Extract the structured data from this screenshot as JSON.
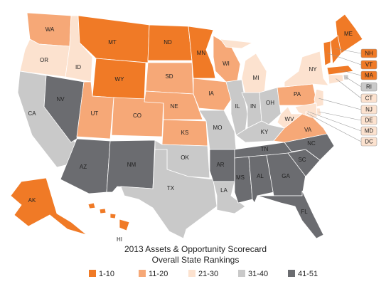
{
  "title": "2013 Assets & Opportunity Scorecard",
  "subtitle": "Overall State Rankings",
  "legend": [
    {
      "label": "1-10",
      "color": "#f07a26"
    },
    {
      "label": "11-20",
      "color": "#f6a877"
    },
    {
      "label": "21-30",
      "color": "#fce2cf"
    },
    {
      "label": "31-40",
      "color": "#c9c9c9"
    },
    {
      "label": "41-51",
      "color": "#6b6c70"
    }
  ],
  "states": [
    {
      "abbr": "WA",
      "group": "11-20"
    },
    {
      "abbr": "OR",
      "group": "21-30"
    },
    {
      "abbr": "CA",
      "group": "31-40"
    },
    {
      "abbr": "NV",
      "group": "41-51"
    },
    {
      "abbr": "ID",
      "group": "21-30"
    },
    {
      "abbr": "MT",
      "group": "1-10"
    },
    {
      "abbr": "WY",
      "group": "1-10"
    },
    {
      "abbr": "UT",
      "group": "11-20"
    },
    {
      "abbr": "AZ",
      "group": "41-51"
    },
    {
      "abbr": "CO",
      "group": "11-20"
    },
    {
      "abbr": "NM",
      "group": "41-51"
    },
    {
      "abbr": "ND",
      "group": "1-10"
    },
    {
      "abbr": "SD",
      "group": "11-20"
    },
    {
      "abbr": "NE",
      "group": "11-20"
    },
    {
      "abbr": "KS",
      "group": "11-20"
    },
    {
      "abbr": "OK",
      "group": "31-40"
    },
    {
      "abbr": "TX",
      "group": "31-40"
    },
    {
      "abbr": "MN",
      "group": "1-10"
    },
    {
      "abbr": "IA",
      "group": "11-20"
    },
    {
      "abbr": "MO",
      "group": "31-40"
    },
    {
      "abbr": "AR",
      "group": "41-51"
    },
    {
      "abbr": "LA",
      "group": "31-40"
    },
    {
      "abbr": "WI",
      "group": "11-20"
    },
    {
      "abbr": "IL",
      "group": "31-40"
    },
    {
      "abbr": "MI",
      "group": "21-30"
    },
    {
      "abbr": "IN",
      "group": "31-40"
    },
    {
      "abbr": "OH",
      "group": "31-40"
    },
    {
      "abbr": "KY",
      "group": "31-40"
    },
    {
      "abbr": "TN",
      "group": "41-51"
    },
    {
      "abbr": "MS",
      "group": "41-51"
    },
    {
      "abbr": "AL",
      "group": "41-51"
    },
    {
      "abbr": "GA",
      "group": "41-51"
    },
    {
      "abbr": "FL",
      "group": "41-51"
    },
    {
      "abbr": "SC",
      "group": "41-51"
    },
    {
      "abbr": "NC",
      "group": "41-51"
    },
    {
      "abbr": "VA",
      "group": "11-20"
    },
    {
      "abbr": "WV",
      "group": "21-30"
    },
    {
      "abbr": "PA",
      "group": "11-20"
    },
    {
      "abbr": "NY",
      "group": "21-30"
    },
    {
      "abbr": "ME",
      "group": "1-10"
    },
    {
      "abbr": "VT",
      "group": "1-10"
    },
    {
      "abbr": "NH",
      "group": "1-10"
    },
    {
      "abbr": "MA",
      "group": "1-10"
    },
    {
      "abbr": "RI",
      "group": "31-40"
    },
    {
      "abbr": "CT",
      "group": "21-30"
    },
    {
      "abbr": "NJ",
      "group": "21-30"
    },
    {
      "abbr": "DE",
      "group": "21-30"
    },
    {
      "abbr": "MD",
      "group": "21-30"
    },
    {
      "abbr": "DC",
      "group": "21-30"
    },
    {
      "abbr": "AK",
      "group": "1-10"
    },
    {
      "abbr": "HI",
      "group": "1-10"
    }
  ]
}
